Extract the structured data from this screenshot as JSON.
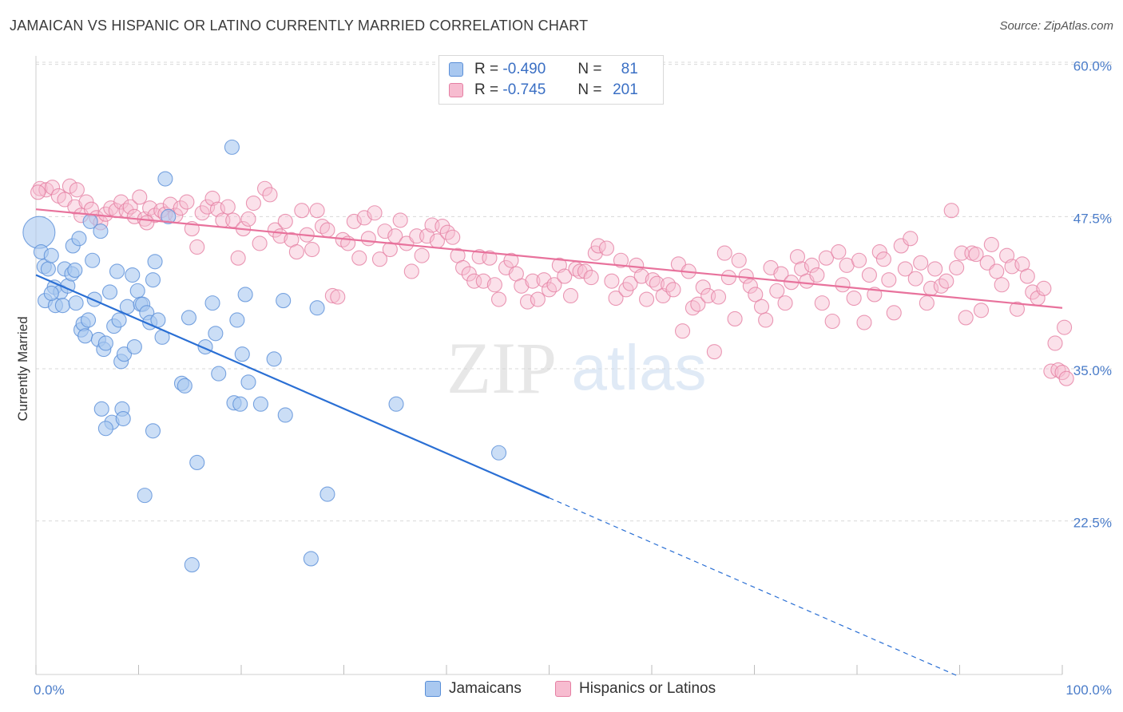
{
  "title": "JAMAICAN VS HISPANIC OR LATINO CURRENTLY MARRIED CORRELATION CHART",
  "source": "Source: ZipAtlas.com",
  "watermark": {
    "zip": "ZIP",
    "atlas": "atlas"
  },
  "legend": {
    "r_label": "R =",
    "n_label": "N =",
    "series": [
      {
        "r": "-0.490",
        "n": "81",
        "fill": "#a9c8f0",
        "stroke": "#5a8fd8"
      },
      {
        "r": "-0.745",
        "n": "201",
        "fill": "#f7bcd0",
        "stroke": "#e57fa3"
      }
    ]
  },
  "bottom_legend": [
    "Jamaicans",
    "Hispanics or Latinos"
  ],
  "colors": {
    "blue_line": "#2a6fd4",
    "pink_line": "#e8729c",
    "grid": "#d9d9d9",
    "tick_text": "#4a7cc9"
  },
  "chart_data": {
    "type": "scatter",
    "title": "JAMAICAN VS HISPANIC OR LATINO CURRENTLY MARRIED CORRELATION CHART",
    "xlabel": "",
    "ylabel": "Currently Married",
    "xlim": [
      0,
      100
    ],
    "ylim": [
      10,
      62
    ],
    "x_tick_labels": [
      "0.0%",
      "100.0%"
    ],
    "y_ticks": [
      22.5,
      35.0,
      47.5,
      60.0
    ],
    "y_tick_labels": [
      "22.5%",
      "35.0%",
      "47.5%",
      "60.0%"
    ],
    "grid": true,
    "legend_position": "top-center",
    "series": [
      {
        "name": "Jamaicans",
        "r": -0.49,
        "n": 81,
        "trend": {
          "x": [
            0,
            50,
            90
          ],
          "y": [
            42.7,
            24.4,
            9.7
          ],
          "solid_until": 50
        },
        "points": [
          [
            0.3,
            46.2
          ],
          [
            0.5,
            44.6
          ],
          [
            0.8,
            43.4
          ],
          [
            1.2,
            43.2
          ],
          [
            1.5,
            44.3
          ],
          [
            0.9,
            40.6
          ],
          [
            1.8,
            41.7
          ],
          [
            1.9,
            40.2
          ],
          [
            2.4,
            41.3
          ],
          [
            2.8,
            43.2
          ],
          [
            2.6,
            40.2
          ],
          [
            3.1,
            41.8
          ],
          [
            3.5,
            42.8
          ],
          [
            3.8,
            43.1
          ],
          [
            3.6,
            45.1
          ],
          [
            4.2,
            45.7
          ],
          [
            4.4,
            38.2
          ],
          [
            4.6,
            38.7
          ],
          [
            4.8,
            37.7
          ],
          [
            5.1,
            39.0
          ],
          [
            5.3,
            47.1
          ],
          [
            5.5,
            43.9
          ],
          [
            5.7,
            40.7
          ],
          [
            6.1,
            37.4
          ],
          [
            6.3,
            46.3
          ],
          [
            6.6,
            36.6
          ],
          [
            6.8,
            37.1
          ],
          [
            7.2,
            41.3
          ],
          [
            7.6,
            38.5
          ],
          [
            7.9,
            43.0
          ],
          [
            8.1,
            39.0
          ],
          [
            8.3,
            35.6
          ],
          [
            8.6,
            36.2
          ],
          [
            8.9,
            40.1
          ],
          [
            9.4,
            42.7
          ],
          [
            9.6,
            36.8
          ],
          [
            9.9,
            41.4
          ],
          [
            10.2,
            40.3
          ],
          [
            10.4,
            40.3
          ],
          [
            10.8,
            39.6
          ],
          [
            11.1,
            38.8
          ],
          [
            11.4,
            42.3
          ],
          [
            11.6,
            43.8
          ],
          [
            11.9,
            39.0
          ],
          [
            12.3,
            37.6
          ],
          [
            12.6,
            50.6
          ],
          [
            12.9,
            47.5
          ],
          [
            14.2,
            33.8
          ],
          [
            14.5,
            33.6
          ],
          [
            14.9,
            39.2
          ],
          [
            15.2,
            18.9
          ],
          [
            15.7,
            27.3
          ],
          [
            16.5,
            36.8
          ],
          [
            17.2,
            40.4
          ],
          [
            17.5,
            37.9
          ],
          [
            17.8,
            34.6
          ],
          [
            19.1,
            53.2
          ],
          [
            19.3,
            32.2
          ],
          [
            19.6,
            39.0
          ],
          [
            19.9,
            32.1
          ],
          [
            20.1,
            36.2
          ],
          [
            20.4,
            41.1
          ],
          [
            20.7,
            33.9
          ],
          [
            21.9,
            32.1
          ],
          [
            23.2,
            35.8
          ],
          [
            24.1,
            40.6
          ],
          [
            24.3,
            31.2
          ],
          [
            26.8,
            19.4
          ],
          [
            27.4,
            40.0
          ],
          [
            28.4,
            24.7
          ],
          [
            35.1,
            32.1
          ],
          [
            45.1,
            28.1
          ],
          [
            6.4,
            31.7
          ],
          [
            7.4,
            30.6
          ],
          [
            8.4,
            31.7
          ],
          [
            8.5,
            30.9
          ],
          [
            10.6,
            24.6
          ],
          [
            11.4,
            29.9
          ],
          [
            6.8,
            30.1
          ],
          [
            1.5,
            41.2
          ],
          [
            3.9,
            40.4
          ]
        ]
      },
      {
        "name": "Hispanics or Latinos",
        "r": -0.745,
        "n": 201,
        "trend": {
          "x": [
            0,
            100
          ],
          "y": [
            48.1,
            40.0
          ]
        },
        "points": [
          [
            0.4,
            49.8
          ],
          [
            1.0,
            49.7
          ],
          [
            1.6,
            49.9
          ],
          [
            2.2,
            49.2
          ],
          [
            2.8,
            48.9
          ],
          [
            3.3,
            50.0
          ],
          [
            3.8,
            48.3
          ],
          [
            4.4,
            47.6
          ],
          [
            4.9,
            48.7
          ],
          [
            5.4,
            48.1
          ],
          [
            5.9,
            47.4
          ],
          [
            6.3,
            47.0
          ],
          [
            6.8,
            47.7
          ],
          [
            7.3,
            48.2
          ],
          [
            7.8,
            48.0
          ],
          [
            8.3,
            48.7
          ],
          [
            8.8,
            48.0
          ],
          [
            9.2,
            48.3
          ],
          [
            9.6,
            47.5
          ],
          [
            10.1,
            49.1
          ],
          [
            10.6,
            47.3
          ],
          [
            11.1,
            48.2
          ],
          [
            11.6,
            47.6
          ],
          [
            12.2,
            48.0
          ],
          [
            12.6,
            47.7
          ],
          [
            13.1,
            48.5
          ],
          [
            13.6,
            47.6
          ],
          [
            14.1,
            48.2
          ],
          [
            14.7,
            48.7
          ],
          [
            15.2,
            46.5
          ],
          [
            15.7,
            45.0
          ],
          [
            16.2,
            47.8
          ],
          [
            16.7,
            48.3
          ],
          [
            17.2,
            49.0
          ],
          [
            17.7,
            48.1
          ],
          [
            18.2,
            47.2
          ],
          [
            18.7,
            48.3
          ],
          [
            19.2,
            47.2
          ],
          [
            19.7,
            44.1
          ],
          [
            20.2,
            46.5
          ],
          [
            20.7,
            47.3
          ],
          [
            21.2,
            48.6
          ],
          [
            21.8,
            45.3
          ],
          [
            22.3,
            49.8
          ],
          [
            22.8,
            49.3
          ],
          [
            23.3,
            46.4
          ],
          [
            23.8,
            45.9
          ],
          [
            24.3,
            47.1
          ],
          [
            24.9,
            45.6
          ],
          [
            25.4,
            44.6
          ],
          [
            25.9,
            48.0
          ],
          [
            26.4,
            46.0
          ],
          [
            26.9,
            44.8
          ],
          [
            27.4,
            48.0
          ],
          [
            27.9,
            46.7
          ],
          [
            28.4,
            46.4
          ],
          [
            28.9,
            41.0
          ],
          [
            29.4,
            40.9
          ],
          [
            29.9,
            45.6
          ],
          [
            30.4,
            45.3
          ],
          [
            31.0,
            47.1
          ],
          [
            31.5,
            44.1
          ],
          [
            32.0,
            47.4
          ],
          [
            32.4,
            45.7
          ],
          [
            33.0,
            47.8
          ],
          [
            33.5,
            44.0
          ],
          [
            34.0,
            46.3
          ],
          [
            34.5,
            44.8
          ],
          [
            35.0,
            45.9
          ],
          [
            35.5,
            47.2
          ],
          [
            36.1,
            45.3
          ],
          [
            36.6,
            43.0
          ],
          [
            37.1,
            45.9
          ],
          [
            37.6,
            44.3
          ],
          [
            38.1,
            45.9
          ],
          [
            38.6,
            46.8
          ],
          [
            39.1,
            45.5
          ],
          [
            39.6,
            46.7
          ],
          [
            40.1,
            46.2
          ],
          [
            40.6,
            45.8
          ],
          [
            41.1,
            44.3
          ],
          [
            41.6,
            43.3
          ],
          [
            42.2,
            42.8
          ],
          [
            42.7,
            42.2
          ],
          [
            43.2,
            44.2
          ],
          [
            43.6,
            42.2
          ],
          [
            44.2,
            44.1
          ],
          [
            44.7,
            41.9
          ],
          [
            45.1,
            40.7
          ],
          [
            45.8,
            43.3
          ],
          [
            46.3,
            43.9
          ],
          [
            46.8,
            42.8
          ],
          [
            47.3,
            41.8
          ],
          [
            47.9,
            40.5
          ],
          [
            48.4,
            42.2
          ],
          [
            48.9,
            40.7
          ],
          [
            49.5,
            42.3
          ],
          [
            50.0,
            41.5
          ],
          [
            50.5,
            41.9
          ],
          [
            51.0,
            43.5
          ],
          [
            51.5,
            42.6
          ],
          [
            52.1,
            41.0
          ],
          [
            52.6,
            43.2
          ],
          [
            53.0,
            43.0
          ],
          [
            53.5,
            43.0
          ],
          [
            54.1,
            42.5
          ],
          [
            54.5,
            44.5
          ],
          [
            54.8,
            45.1
          ],
          [
            55.6,
            44.9
          ],
          [
            56.1,
            42.2
          ],
          [
            56.5,
            40.8
          ],
          [
            57.0,
            43.9
          ],
          [
            57.5,
            41.5
          ],
          [
            57.9,
            42.0
          ],
          [
            58.5,
            43.5
          ],
          [
            59.0,
            42.6
          ],
          [
            59.5,
            40.7
          ],
          [
            60.1,
            42.3
          ],
          [
            60.5,
            42.0
          ],
          [
            61.1,
            41.0
          ],
          [
            61.6,
            41.9
          ],
          [
            62.1,
            41.5
          ],
          [
            62.6,
            43.6
          ],
          [
            63.0,
            38.1
          ],
          [
            63.6,
            43.0
          ],
          [
            64.0,
            40.0
          ],
          [
            64.5,
            40.3
          ],
          [
            65.0,
            41.7
          ],
          [
            65.5,
            41.0
          ],
          [
            66.1,
            36.4
          ],
          [
            66.5,
            40.9
          ],
          [
            67.1,
            44.5
          ],
          [
            67.5,
            42.5
          ],
          [
            68.1,
            39.1
          ],
          [
            68.5,
            43.9
          ],
          [
            69.2,
            42.6
          ],
          [
            69.6,
            41.8
          ],
          [
            70.1,
            41.1
          ],
          [
            70.7,
            40.1
          ],
          [
            71.1,
            39.0
          ],
          [
            71.6,
            43.3
          ],
          [
            72.2,
            41.4
          ],
          [
            72.6,
            42.8
          ],
          [
            73.0,
            40.4
          ],
          [
            73.6,
            42.1
          ],
          [
            74.2,
            44.2
          ],
          [
            74.6,
            43.2
          ],
          [
            75.1,
            42.2
          ],
          [
            75.6,
            43.5
          ],
          [
            76.1,
            42.7
          ],
          [
            76.6,
            40.4
          ],
          [
            77.0,
            44.1
          ],
          [
            77.6,
            38.9
          ],
          [
            78.2,
            44.6
          ],
          [
            78.6,
            41.9
          ],
          [
            79.0,
            43.5
          ],
          [
            79.7,
            40.8
          ],
          [
            80.2,
            43.9
          ],
          [
            80.7,
            38.8
          ],
          [
            81.2,
            42.7
          ],
          [
            81.7,
            41.1
          ],
          [
            82.2,
            44.6
          ],
          [
            82.6,
            44.0
          ],
          [
            83.1,
            42.3
          ],
          [
            83.6,
            39.6
          ],
          [
            84.3,
            45.1
          ],
          [
            84.7,
            43.2
          ],
          [
            85.2,
            45.7
          ],
          [
            85.7,
            42.4
          ],
          [
            86.2,
            43.7
          ],
          [
            86.8,
            40.4
          ],
          [
            87.2,
            41.6
          ],
          [
            87.6,
            43.2
          ],
          [
            88.2,
            41.8
          ],
          [
            88.7,
            42.2
          ],
          [
            89.2,
            48.0
          ],
          [
            89.7,
            43.3
          ],
          [
            90.2,
            44.5
          ],
          [
            90.6,
            39.2
          ],
          [
            91.2,
            44.5
          ],
          [
            91.6,
            44.4
          ],
          [
            92.1,
            39.8
          ],
          [
            92.7,
            43.7
          ],
          [
            93.1,
            45.2
          ],
          [
            93.6,
            43.0
          ],
          [
            94.1,
            41.9
          ],
          [
            94.6,
            44.3
          ],
          [
            95.1,
            43.4
          ],
          [
            95.6,
            39.9
          ],
          [
            96.1,
            43.6
          ],
          [
            96.6,
            42.6
          ],
          [
            97.1,
            41.3
          ],
          [
            97.6,
            40.8
          ],
          [
            98.2,
            41.6
          ],
          [
            98.9,
            34.8
          ],
          [
            99.3,
            37.1
          ],
          [
            99.6,
            34.9
          ],
          [
            100.0,
            34.7
          ],
          [
            100.2,
            38.4
          ],
          [
            100.4,
            34.2
          ],
          [
            0.2,
            49.5
          ],
          [
            4.0,
            49.7
          ],
          [
            10.8,
            47.0
          ]
        ]
      }
    ]
  }
}
